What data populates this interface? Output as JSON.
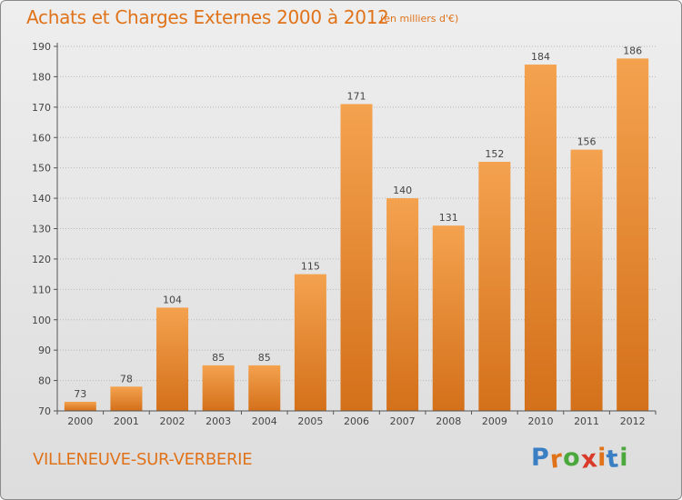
{
  "title": "Achats et Charges Externes 2000 à 2012",
  "subtitle": "(en milliers d'€)",
  "location": "VILLENEUVE-SUR-VERBERIE",
  "logo": {
    "text": "Proxiti",
    "colors": [
      "#3a7fc4",
      "#e0731a",
      "#4aa83c",
      "#d93a2a",
      "#e0731a",
      "#3a7fc4",
      "#4aa83c"
    ]
  },
  "colors": {
    "title": "#e0731a",
    "bar_top": "#f4a24f",
    "bar_bottom": "#d4701a",
    "grid": "#b8b8b8"
  },
  "chart_data": {
    "type": "bar",
    "categories": [
      "2000",
      "2001",
      "2002",
      "2003",
      "2004",
      "2005",
      "2006",
      "2007",
      "2008",
      "2009",
      "2010",
      "2011",
      "2012"
    ],
    "values": [
      73,
      78,
      104,
      85,
      85,
      115,
      171,
      140,
      131,
      152,
      184,
      156,
      186
    ],
    "ylim": [
      70,
      190
    ],
    "yticks": [
      70,
      80,
      90,
      100,
      110,
      120,
      130,
      140,
      150,
      160,
      170,
      180,
      190
    ],
    "grid": true
  }
}
